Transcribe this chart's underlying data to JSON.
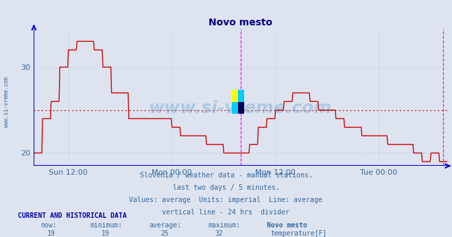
{
  "title": "Novo mesto",
  "title_color": "#000080",
  "bg_color": "#dde4f0",
  "plot_bg_color": "#dde4f0",
  "line_color": "#cc0000",
  "line_width": 1.0,
  "avg_line_value": 25,
  "avg_line_color": "#cc0000",
  "axis_color": "#0000cc",
  "grid_color": "#aab4cc",
  "tick_label_color": "#336699",
  "ylim": [
    18.5,
    34.5
  ],
  "yticks": [
    20,
    30
  ],
  "tick_labels": [
    "Sun 12:00",
    "Mon 00:00",
    "Mon 12:00",
    "Tue 00:00"
  ],
  "tick_hours": [
    4,
    16,
    28,
    40
  ],
  "total_hours": 48,
  "vline_color": "#ff00ff",
  "vline_hour": 24,
  "vline2_hour": 47.5,
  "text_color": "#336699",
  "footer_lines": [
    "Slovenia / weather data - manual stations.",
    "last two days / 5 minutes.",
    "Values: average  Units: imperial  Line: average",
    "vertical line - 24 hrs  divider"
  ],
  "current_label": "CURRENT AND HISTORICAL DATA",
  "col_headers": [
    "now:",
    "minimum:",
    "average:",
    "maximum:",
    "Novo mesto"
  ],
  "col_values": [
    "19",
    "19",
    "25",
    "32"
  ],
  "legend_label": "temperature[F]",
  "legend_color": "#cc0000",
  "watermark_text": "www.si-vreme.com",
  "watermark_color": "#4488cc",
  "watermark_alpha": 0.3,
  "n_points": 576,
  "logo_colors": [
    "#ffff00",
    "#00ccff",
    "#00ccff",
    "#000055"
  ]
}
